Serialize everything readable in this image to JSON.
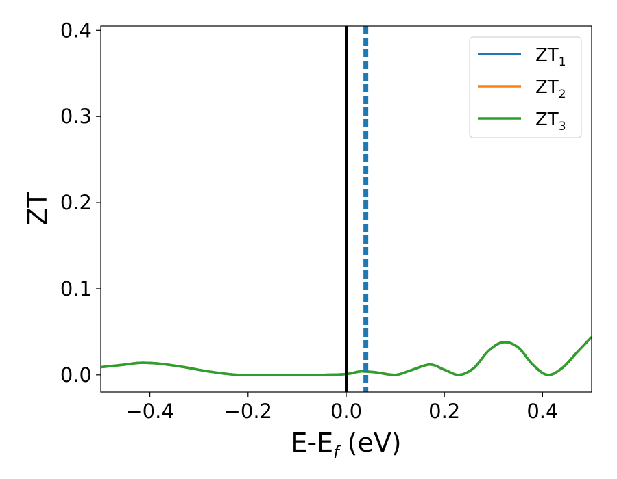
{
  "chart_data": {
    "type": "line",
    "xlabel": "E-E",
    "xlabel_sub": "f",
    "xlabel_suffix": " (eV)",
    "ylabel": "ZT",
    "xlim": [
      -0.5,
      0.5
    ],
    "ylim": [
      -0.02,
      0.405
    ],
    "x_ticks": [
      -0.4,
      -0.2,
      0.0,
      0.2,
      0.4
    ],
    "x_tick_labels": [
      "−0.4",
      "−0.2",
      "0.0",
      "0.2",
      "0.4"
    ],
    "y_ticks": [
      0.0,
      0.1,
      0.2,
      0.3,
      0.4
    ],
    "y_tick_labels": [
      "0.0",
      "0.1",
      "0.2",
      "0.3",
      "0.4"
    ],
    "grid": false,
    "legend_position": "top-right",
    "legend": [
      {
        "name": "ZT",
        "sub": "1",
        "color": "#1f77b4"
      },
      {
        "name": "ZT",
        "sub": "2",
        "color": "#ff7f0e"
      },
      {
        "name": "ZT",
        "sub": "3",
        "color": "#2ca02c"
      }
    ],
    "vertical_lines": [
      {
        "x": 0.0,
        "style": "solid",
        "color": "#000000"
      },
      {
        "x": 0.04,
        "style": "dashed",
        "color": "#1f77b4"
      }
    ],
    "series": [
      {
        "color": "#1f77b4",
        "x": [
          -0.5,
          -0.45,
          -0.42,
          -0.38,
          -0.33,
          -0.28,
          -0.22,
          -0.15,
          -0.1,
          -0.05,
          0.0,
          0.03,
          0.06,
          0.1,
          0.13,
          0.17,
          0.2,
          0.23,
          0.26,
          0.29,
          0.32,
          0.35,
          0.38,
          0.41,
          0.44,
          0.47,
          0.5
        ],
        "values": [
          0.009,
          0.012,
          0.014,
          0.013,
          0.009,
          0.004,
          0.0,
          0.0,
          0.0,
          0.0,
          0.001,
          0.004,
          0.003,
          0.0,
          0.005,
          0.012,
          0.006,
          0.0,
          0.008,
          0.028,
          0.038,
          0.032,
          0.012,
          0.0,
          0.008,
          0.026,
          0.044
        ]
      },
      {
        "color": "#ff7f0e",
        "x": [
          -0.5,
          -0.45,
          -0.42,
          -0.38,
          -0.33,
          -0.28,
          -0.22,
          -0.15,
          -0.1,
          -0.05,
          0.0,
          0.03,
          0.06,
          0.1,
          0.13,
          0.17,
          0.2,
          0.23,
          0.26,
          0.29,
          0.32,
          0.35,
          0.38,
          0.41,
          0.44,
          0.47,
          0.5
        ],
        "values": [
          0.009,
          0.012,
          0.014,
          0.013,
          0.009,
          0.004,
          0.0,
          0.0,
          0.0,
          0.0,
          0.001,
          0.004,
          0.003,
          0.0,
          0.005,
          0.012,
          0.006,
          0.0,
          0.008,
          0.028,
          0.038,
          0.032,
          0.012,
          0.0,
          0.008,
          0.026,
          0.044
        ]
      },
      {
        "color": "#2ca02c",
        "x": [
          -0.5,
          -0.45,
          -0.42,
          -0.38,
          -0.33,
          -0.28,
          -0.22,
          -0.15,
          -0.1,
          -0.05,
          0.0,
          0.03,
          0.06,
          0.1,
          0.13,
          0.17,
          0.2,
          0.23,
          0.26,
          0.29,
          0.32,
          0.35,
          0.38,
          0.41,
          0.44,
          0.47,
          0.5
        ],
        "values": [
          0.009,
          0.012,
          0.014,
          0.013,
          0.009,
          0.004,
          0.0,
          0.0,
          0.0,
          0.0,
          0.001,
          0.004,
          0.003,
          0.0,
          0.005,
          0.012,
          0.006,
          0.0,
          0.008,
          0.028,
          0.038,
          0.032,
          0.012,
          0.0,
          0.008,
          0.026,
          0.044
        ]
      }
    ]
  }
}
